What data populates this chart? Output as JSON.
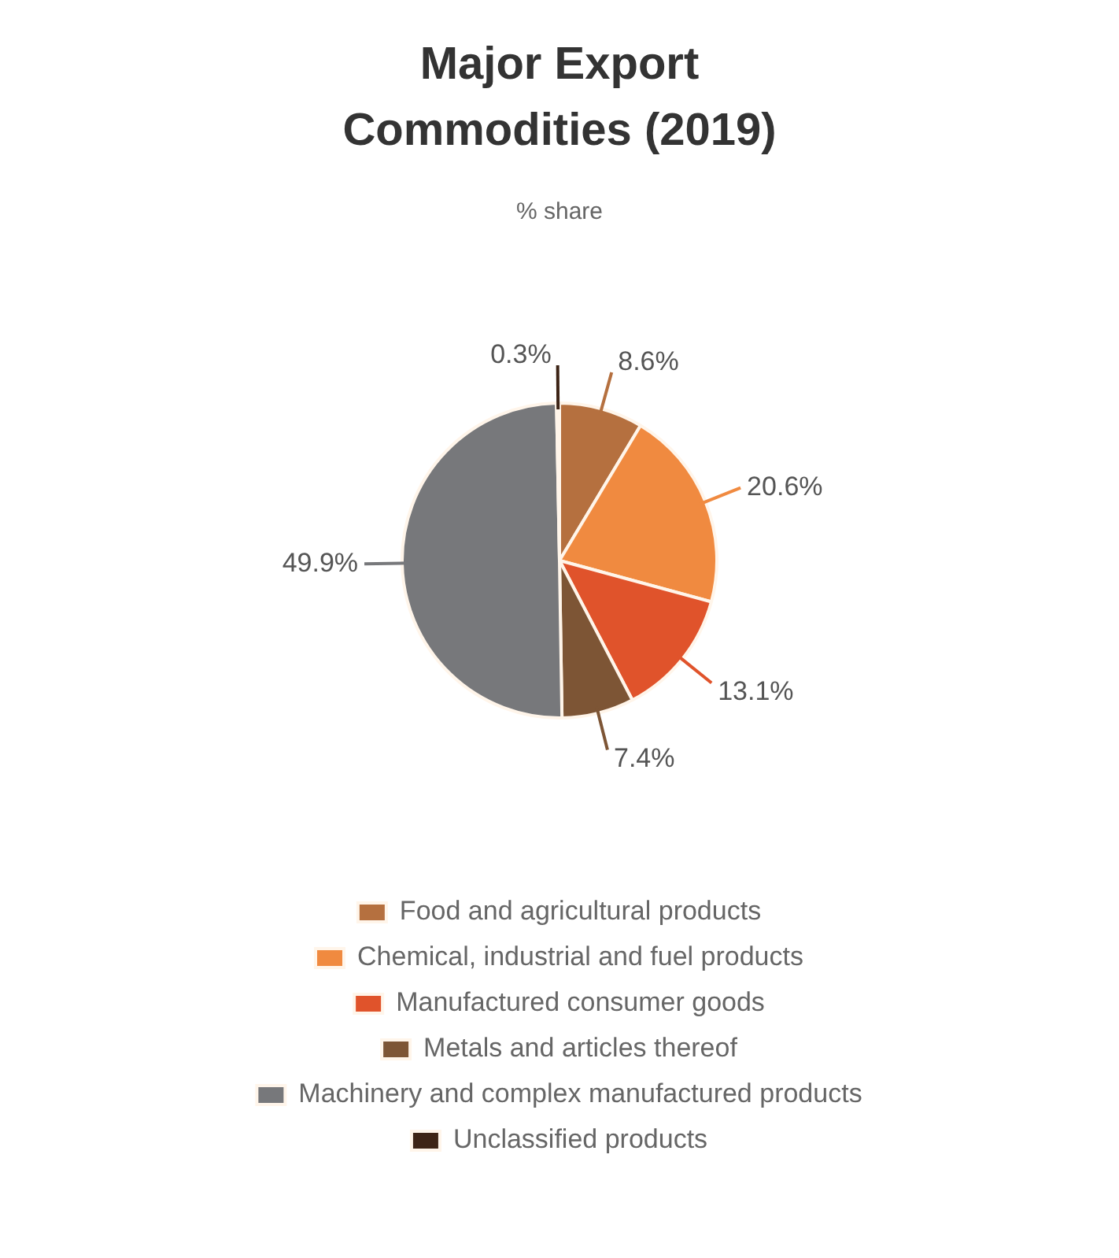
{
  "chart_data": {
    "type": "pie",
    "title": "Major Export Commodities (2019)",
    "subtitle": "% share",
    "categories": [
      "Food and agricultural products",
      "Chemical, industrial and fuel products",
      "Manufactured consumer goods",
      "Metals and articles thereof",
      "Machinery and complex manufactured products",
      "Unclassified products"
    ],
    "values": [
      8.6,
      20.6,
      13.1,
      7.4,
      49.9,
      0.3
    ],
    "value_labels": [
      "8.6%",
      "20.6%",
      "13.1%",
      "7.4%",
      "49.9%",
      "0.3%"
    ],
    "colors": [
      "#b5703f",
      "#f08a40",
      "#e0532b",
      "#7d5535",
      "#77787b",
      "#3d2416"
    ],
    "legend": "bottom"
  }
}
